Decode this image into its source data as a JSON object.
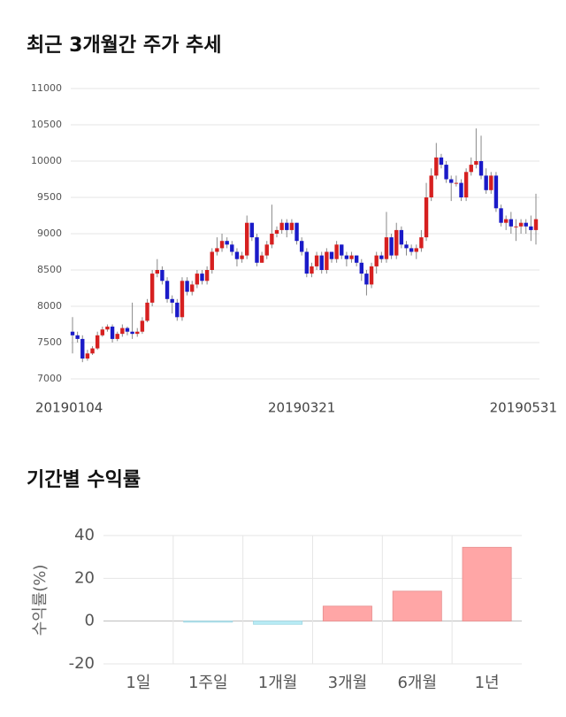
{
  "chart_data": [
    {
      "type": "candlestick",
      "title": "최근 3개월간 주가 추세",
      "categories": [
        "20190104",
        null,
        null,
        null,
        null,
        null,
        null,
        null,
        null,
        null,
        null,
        null,
        null,
        null,
        null,
        null,
        null,
        null,
        null,
        null,
        null,
        null,
        null,
        null,
        null,
        null,
        null,
        null,
        null,
        null,
        null,
        null,
        null,
        null,
        null,
        null,
        null,
        null,
        null,
        null,
        null,
        null,
        null,
        null,
        null,
        null,
        "20190321",
        null,
        null,
        null,
        null,
        null,
        null,
        null,
        null,
        null,
        null,
        null,
        null,
        null,
        null,
        null,
        null,
        null,
        null,
        null,
        null,
        null,
        null,
        null,
        null,
        null,
        null,
        null,
        null,
        null,
        null,
        null,
        null,
        null,
        null,
        null,
        null,
        null,
        null,
        null,
        null,
        null,
        null,
        null,
        null,
        null,
        null,
        "20190531"
      ],
      "open": [
        7650,
        7600,
        7550,
        7280,
        7350,
        7420,
        7600,
        7680,
        7720,
        7550,
        7620,
        7700,
        7650,
        7620,
        7650,
        7800,
        8050,
        8450,
        8500,
        8350,
        8100,
        8050,
        7850,
        8350,
        8200,
        8300,
        8450,
        8350,
        8500,
        8750,
        8800,
        8900,
        8850,
        8750,
        8650,
        8700,
        9150,
        8950,
        8600,
        8700,
        8850,
        9000,
        9050,
        9150,
        9050,
        9150,
        8900,
        8750,
        8450,
        8550,
        8700,
        8500,
        8750,
        8650,
        8850,
        8700,
        8650,
        8700,
        8600,
        8450,
        8300,
        8550,
        8700,
        8650,
        8950,
        8700,
        9050,
        8850,
        8800,
        8750,
        8800,
        8950,
        9500,
        9800,
        10050,
        9950,
        9750,
        9700,
        9700,
        9500,
        9850,
        9950,
        10000,
        9800,
        9600,
        9800,
        9350,
        9150,
        9200,
        9100,
        9100,
        9150,
        9100,
        9050
      ],
      "close": [
        7600,
        7550,
        7280,
        7350,
        7420,
        7600,
        7680,
        7720,
        7550,
        7620,
        7700,
        7650,
        7620,
        7650,
        7800,
        8050,
        8450,
        8500,
        8350,
        8100,
        8050,
        7850,
        8350,
        8200,
        8300,
        8450,
        8350,
        8500,
        8750,
        8800,
        8900,
        8850,
        8750,
        8650,
        8700,
        9150,
        8950,
        8600,
        8700,
        8850,
        9000,
        9050,
        9150,
        9050,
        9150,
        8900,
        8750,
        8450,
        8550,
        8700,
        8500,
        8750,
        8650,
        8850,
        8700,
        8650,
        8700,
        8600,
        8450,
        8300,
        8550,
        8700,
        8650,
        8950,
        8700,
        9050,
        8850,
        8800,
        8750,
        8800,
        8950,
        9500,
        9800,
        10050,
        9950,
        9750,
        9700,
        9700,
        9500,
        9850,
        9950,
        10000,
        9800,
        9600,
        9800,
        9350,
        9150,
        9200,
        9100,
        9100,
        9150,
        9100,
        9050,
        9200
      ],
      "high": [
        7850,
        7650,
        7600,
        7400,
        7450,
        7650,
        7720,
        7750,
        7750,
        7650,
        7750,
        7720,
        8050,
        7700,
        7850,
        8100,
        8500,
        8650,
        8550,
        8400,
        8150,
        8100,
        8400,
        8400,
        8350,
        8500,
        8500,
        8550,
        8800,
        8950,
        9000,
        8950,
        8900,
        8800,
        8750,
        9250,
        9150,
        9000,
        8750,
        8900,
        9400,
        9100,
        9200,
        9200,
        9200,
        9150,
        8950,
        8800,
        8600,
        8750,
        8750,
        8800,
        8750,
        8900,
        8850,
        8750,
        8750,
        8700,
        8650,
        8500,
        8600,
        8750,
        8750,
        9300,
        9000,
        9150,
        9100,
        8900,
        8850,
        8850,
        9050,
        9700,
        9900,
        10250,
        10100,
        10000,
        9800,
        9800,
        9750,
        9900,
        10050,
        10450,
        10350,
        9900,
        9850,
        9850,
        9400,
        9250,
        9300,
        9200,
        9200,
        9200,
        9250,
        9550
      ],
      "low": [
        7350,
        7500,
        7230,
        7250,
        7330,
        7400,
        7580,
        7650,
        7500,
        7520,
        7580,
        7600,
        7550,
        7580,
        7620,
        7780,
        8000,
        8400,
        8300,
        8050,
        7900,
        7800,
        7800,
        8150,
        8150,
        8250,
        8300,
        8300,
        8450,
        8700,
        8750,
        8800,
        8700,
        8550,
        8600,
        8650,
        8900,
        8550,
        8600,
        8650,
        8800,
        8950,
        9000,
        8950,
        9000,
        8850,
        8700,
        8400,
        8400,
        8500,
        8450,
        8450,
        8600,
        8600,
        8650,
        8550,
        8600,
        8550,
        8350,
        8150,
        8250,
        8450,
        8600,
        8600,
        8650,
        8650,
        8800,
        8700,
        8700,
        8650,
        8750,
        8900,
        9450,
        9750,
        9900,
        9700,
        9450,
        9650,
        9450,
        9450,
        9800,
        9900,
        9750,
        9550,
        9550,
        9300,
        9100,
        9050,
        9000,
        8900,
        9000,
        9000,
        8900,
        8850
      ],
      "up_color": "#d62020",
      "down_color": "#1a1ac8",
      "ylim": [
        7000,
        11000
      ],
      "yticks": [
        7000,
        7500,
        8000,
        8500,
        9000,
        9500,
        10000,
        10500,
        11000
      ],
      "grid": true
    },
    {
      "type": "bar",
      "title": "기간별 수익률",
      "y_label": "수익률(%)",
      "categories": [
        "1일",
        "1주일",
        "1개월",
        "3개월",
        "6개월",
        "1년"
      ],
      "values": [
        0,
        -0.5,
        -1.5,
        7,
        14,
        34.5
      ],
      "positive_color": "#ffa6a6",
      "negative_color": "#b8ebf5",
      "ylim": [
        -20,
        40
      ],
      "yticks": [
        -20,
        0,
        20,
        40
      ],
      "grid": true
    }
  ]
}
